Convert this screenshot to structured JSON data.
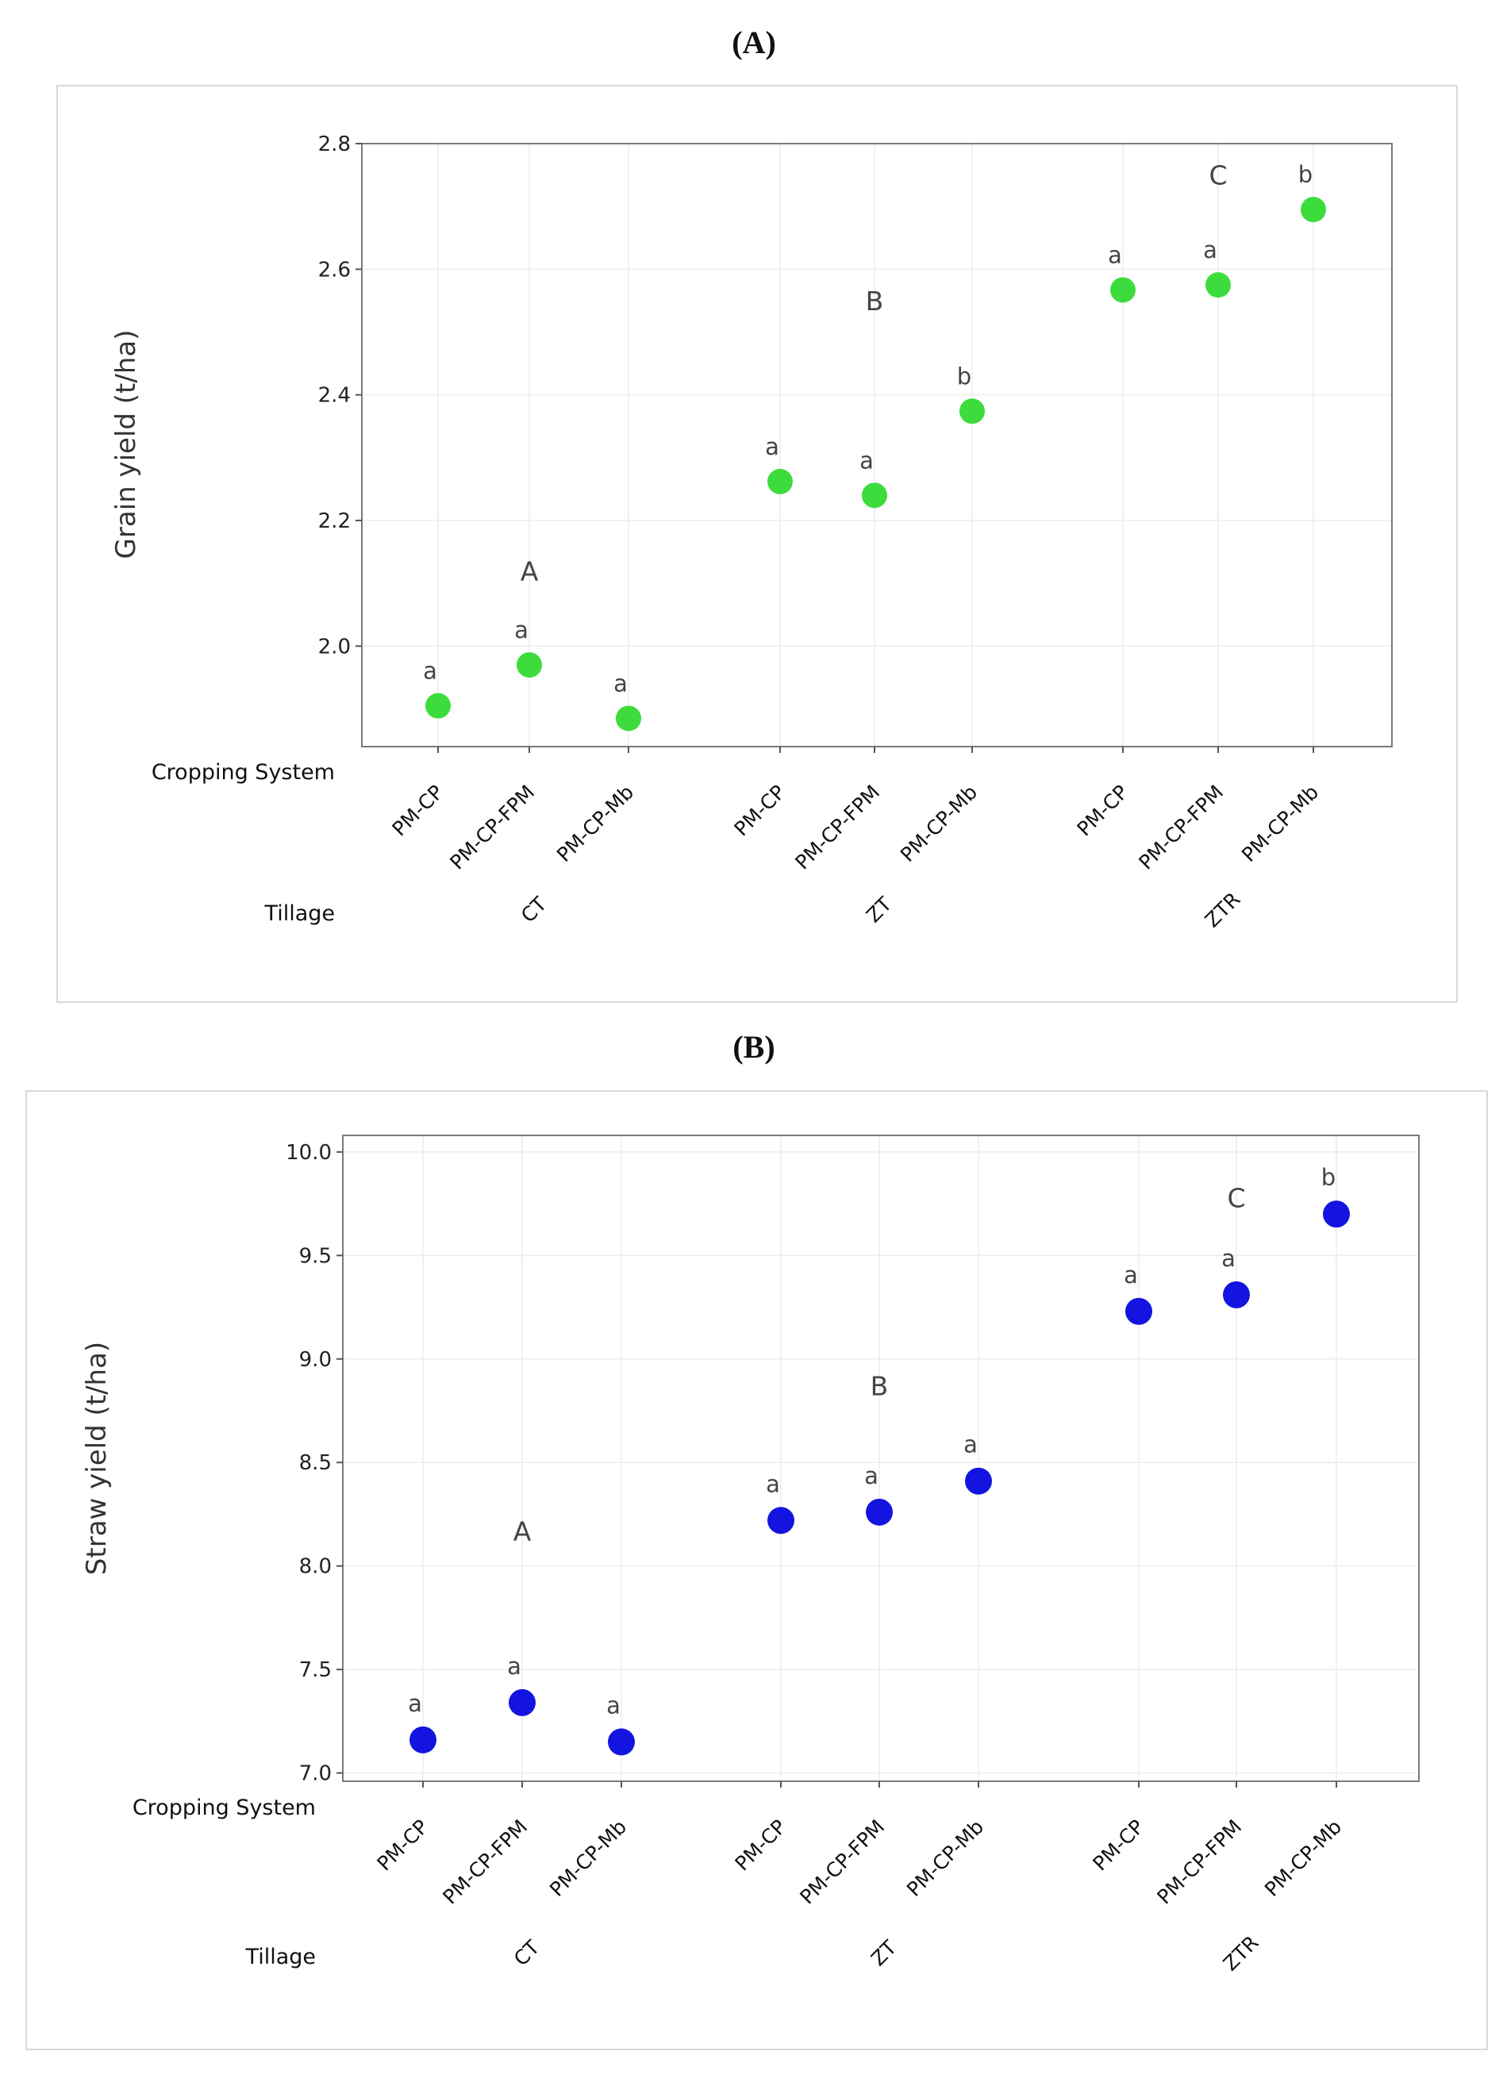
{
  "panels": {
    "a": {
      "label": "(A)"
    },
    "b": {
      "label": "(B)"
    }
  },
  "chart_data": [
    {
      "type": "scatter",
      "title": "",
      "ylabel": "Grain yield (t/ha)",
      "ylim": [
        1.84,
        2.8
      ],
      "yticks": [
        "2.0",
        "2.2",
        "2.4",
        "2.6",
        "2.8"
      ],
      "grid": true,
      "row_labels": {
        "cropping": "Cropping System",
        "tillage": "Tillage"
      },
      "tillage_groups": [
        {
          "name": "CT",
          "group_letter": "A",
          "group_letter_y": 2.12
        },
        {
          "name": "ZT",
          "group_letter": "B",
          "group_letter_y": 2.55
        },
        {
          "name": "ZTR",
          "group_letter": "C",
          "group_letter_y": 2.75
        }
      ],
      "categories": [
        "PM-CP",
        "PM-CP-FPM",
        "PM-CP-Mb"
      ],
      "color": "#3ddc3d",
      "points": [
        {
          "group": "CT",
          "category": "PM-CP",
          "value": 1.905,
          "letter": "a"
        },
        {
          "group": "CT",
          "category": "PM-CP-FPM",
          "value": 1.97,
          "letter": "a"
        },
        {
          "group": "CT",
          "category": "PM-CP-Mb",
          "value": 1.885,
          "letter": "a"
        },
        {
          "group": "ZT",
          "category": "PM-CP",
          "value": 2.262,
          "letter": "a"
        },
        {
          "group": "ZT",
          "category": "PM-CP-FPM",
          "value": 2.24,
          "letter": "a"
        },
        {
          "group": "ZT",
          "category": "PM-CP-Mb",
          "value": 2.374,
          "letter": "b"
        },
        {
          "group": "ZTR",
          "category": "PM-CP",
          "value": 2.567,
          "letter": "a"
        },
        {
          "group": "ZTR",
          "category": "PM-CP-FPM",
          "value": 2.575,
          "letter": "a"
        },
        {
          "group": "ZTR",
          "category": "PM-CP-Mb",
          "value": 2.695,
          "letter": "b"
        }
      ]
    },
    {
      "type": "scatter",
      "title": "",
      "ylabel": "Straw yield (t/ha)",
      "ylim": [
        6.96,
        10.08
      ],
      "yticks": [
        "7.0",
        "7.5",
        "8.0",
        "8.5",
        "9.0",
        "9.5",
        "10.0"
      ],
      "grid": true,
      "row_labels": {
        "cropping": "Cropping System",
        "tillage": "Tillage"
      },
      "tillage_groups": [
        {
          "name": "CT",
          "group_letter": "A",
          "group_letter_y": 8.17
        },
        {
          "name": "ZT",
          "group_letter": "B",
          "group_letter_y": 8.87
        },
        {
          "name": "ZTR",
          "group_letter": "C",
          "group_letter_y": 9.78
        }
      ],
      "categories": [
        "PM-CP",
        "PM-CP-FPM",
        "PM-CP-Mb"
      ],
      "color": "#1414e0",
      "points": [
        {
          "group": "CT",
          "category": "PM-CP",
          "value": 7.16,
          "letter": "a"
        },
        {
          "group": "CT",
          "category": "PM-CP-FPM",
          "value": 7.34,
          "letter": "a"
        },
        {
          "group": "CT",
          "category": "PM-CP-Mb",
          "value": 7.15,
          "letter": "a"
        },
        {
          "group": "ZT",
          "category": "PM-CP",
          "value": 8.22,
          "letter": "a"
        },
        {
          "group": "ZT",
          "category": "PM-CP-FPM",
          "value": 8.26,
          "letter": "a"
        },
        {
          "group": "ZT",
          "category": "PM-CP-Mb",
          "value": 8.41,
          "letter": "a"
        },
        {
          "group": "ZTR",
          "category": "PM-CP",
          "value": 9.23,
          "letter": "a"
        },
        {
          "group": "ZTR",
          "category": "PM-CP-FPM",
          "value": 9.31,
          "letter": "a"
        },
        {
          "group": "ZTR",
          "category": "PM-CP-Mb",
          "value": 9.7,
          "letter": "b"
        }
      ]
    }
  ]
}
